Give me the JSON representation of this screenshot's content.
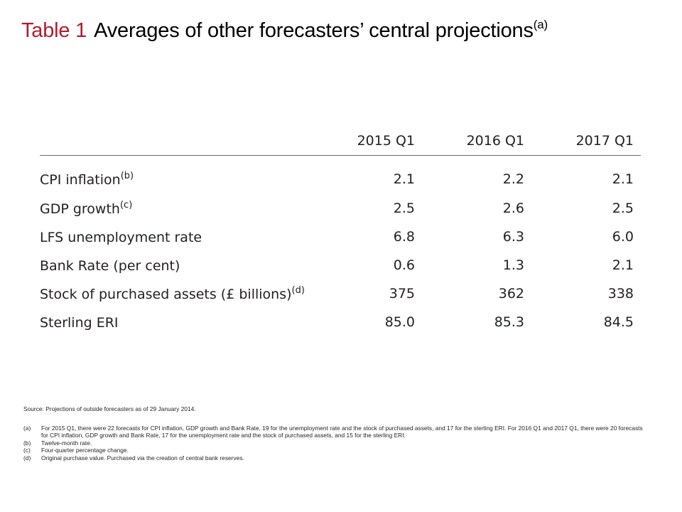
{
  "title": {
    "label": "Table 1",
    "text": "Averages of other forecasters’ central projections",
    "note_ref": "(a)"
  },
  "table": {
    "columns": [
      "",
      "2015 Q1",
      "2016 Q1",
      "2017 Q1"
    ],
    "rows": [
      {
        "label": "CPI inflation",
        "note": "(b)",
        "values": [
          "2.1",
          "2.2",
          "2.1"
        ]
      },
      {
        "label": "GDP growth",
        "note": "(c)",
        "values": [
          "2.5",
          "2.6",
          "2.5"
        ]
      },
      {
        "label": "LFS unemployment rate",
        "note": "",
        "values": [
          "6.8",
          "6.3",
          "6.0"
        ]
      },
      {
        "label": "Bank Rate (per cent)",
        "note": "",
        "values": [
          "0.6",
          "1.3",
          "2.1"
        ]
      },
      {
        "label": "Stock of purchased assets (£ billions)",
        "note": "(d)",
        "values": [
          "375",
          "362",
          "338"
        ]
      },
      {
        "label": "Sterling ERI",
        "note": "",
        "values": [
          "85.0",
          "85.3",
          "84.5"
        ]
      }
    ]
  },
  "notes": {
    "source": "Source: Projections of outside forecasters as of 29 January 2014.",
    "footnotes": [
      {
        "mark": "(a)",
        "text": "For 2015 Q1, there were 22 forecasts for CPI inflation, GDP growth and Bank Rate, 19 for the unemployment rate and the stock of purchased assets, and 17 for the sterling ERI. For 2016 Q1 and 2017 Q1, there were 20 forecasts for CPI inflation, GDP growth and Bank Rate, 17 for the unemployment rate and the stock of purchased assets, and 15 for the sterling ERI."
      },
      {
        "mark": "(b)",
        "text": "Twelve-month rate."
      },
      {
        "mark": "(c)",
        "text": "Four-quarter percentage change."
      },
      {
        "mark": "(d)",
        "text": "Original purchase value.  Purchased via the creation of central bank reserves."
      }
    ]
  }
}
